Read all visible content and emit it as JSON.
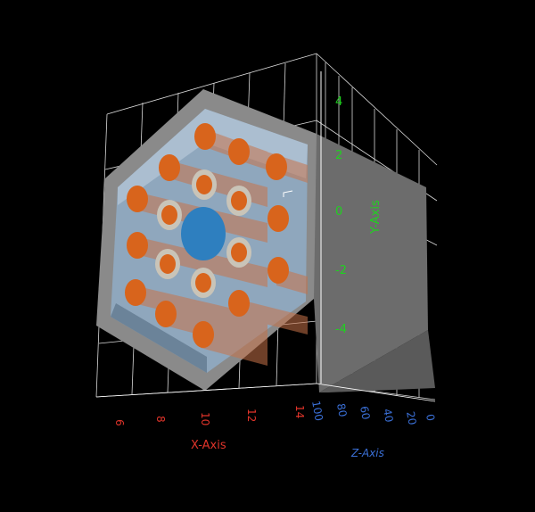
{
  "scene": {
    "background": "#000000",
    "grid_color": "#ffffff",
    "shell_color": "#8a8a8a",
    "inner_wall_color": "#9fb4c8",
    "rod_color": "#d8641c",
    "cladding_color": "#c9c4b8",
    "center_rod_color": "#2e7fbf"
  },
  "axes": {
    "x": {
      "title": "X-Axis",
      "color": "#e0342a",
      "ticks": [
        "6",
        "8",
        "10",
        "12",
        "14"
      ]
    },
    "y": {
      "title": "Y-Axis",
      "color": "#1fd21f",
      "ticks": [
        "4",
        "2",
        "0",
        "-2",
        "-4"
      ]
    },
    "z": {
      "title": "Z-Axis",
      "color": "#3a6fd6",
      "ticks": [
        "100",
        "80",
        "60",
        "40",
        "20",
        "0"
      ]
    }
  }
}
